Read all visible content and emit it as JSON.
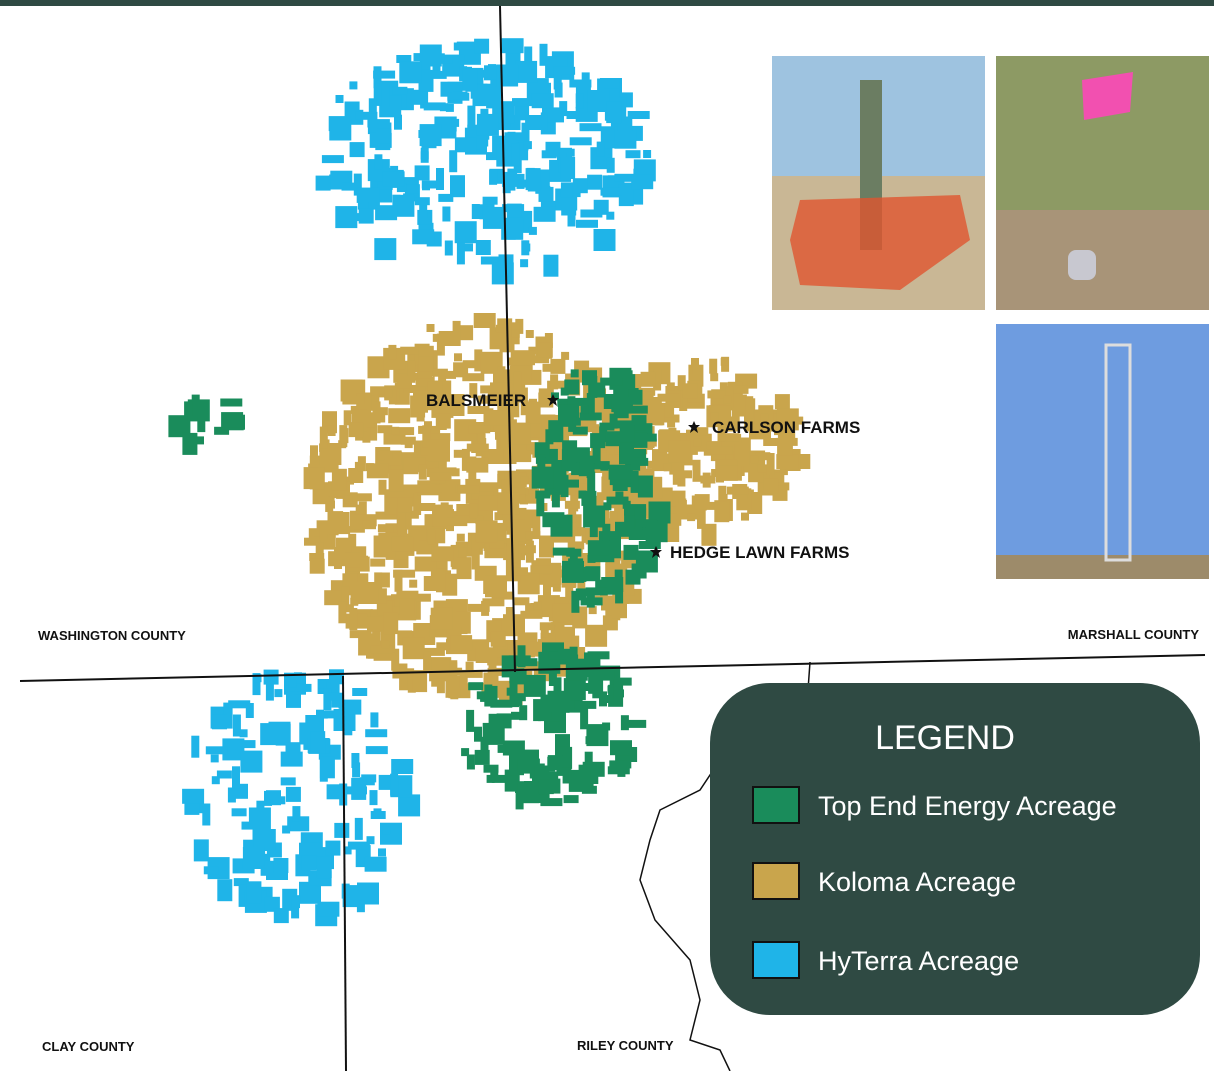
{
  "counties": [
    "WASHINGTON COUNTY",
    "MARSHALL COUNTY",
    "CLAY COUNTY",
    "RILEY COUNTY"
  ],
  "sites": [
    "BALSMEIER",
    "CARLSON FARMS",
    "HEDGE LAWN FARMS"
  ],
  "legend": {
    "title": "LEGEND",
    "items": [
      {
        "label": "Top End Energy Acreage",
        "color": "#1a8c5b"
      },
      {
        "label": "Koloma Acreage",
        "color": "#c9a54c"
      },
      {
        "label": "HyTerra Acreage",
        "color": "#1fb4e8"
      }
    ]
  }
}
